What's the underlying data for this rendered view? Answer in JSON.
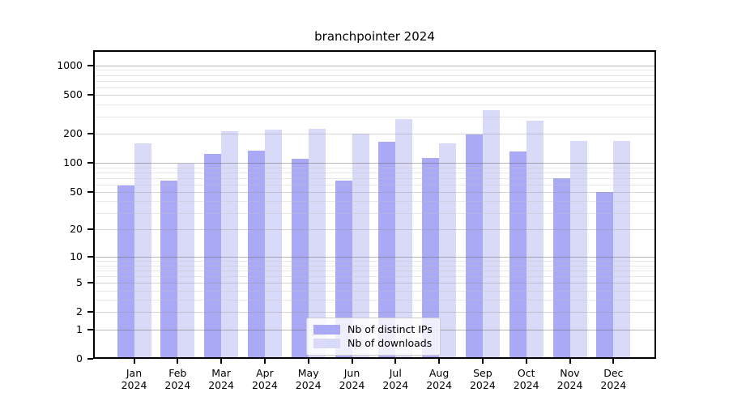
{
  "chart_data": {
    "type": "bar",
    "title": "branchpointer 2024",
    "categories": [
      "Jan 2024",
      "Feb 2024",
      "Mar 2024",
      "Apr 2024",
      "May 2024",
      "Jun 2024",
      "Jul 2024",
      "Aug 2024",
      "Sep 2024",
      "Oct 2024",
      "Nov 2024",
      "Dec 2024"
    ],
    "series": [
      {
        "name": "Nb of distinct IPs",
        "color": "#a9a9f5",
        "values": [
          58,
          66,
          125,
          133,
          110,
          66,
          165,
          112,
          197,
          131,
          70,
          50
        ]
      },
      {
        "name": "Nb of downloads",
        "color": "#d9d9f8",
        "values": [
          160,
          98,
          212,
          221,
          226,
          200,
          282,
          158,
          350,
          271,
          170,
          168
        ]
      }
    ],
    "yscale": "log10(1+v)",
    "ylim": [
      0,
      1435
    ],
    "yticks": [
      0,
      1,
      2,
      5,
      10,
      20,
      50,
      100,
      200,
      500,
      1000
    ],
    "grid": true,
    "legend_position": "inside lower-center"
  },
  "colors": {
    "grid_major": "rgba(95,95,95,0.45)",
    "grid_sub": "rgba(150,150,150,0.40)",
    "grid_minor": "rgba(195,195,195,0.38)",
    "spine": "#000000",
    "background": "#ffffff",
    "legend_border": "#cccccc"
  }
}
